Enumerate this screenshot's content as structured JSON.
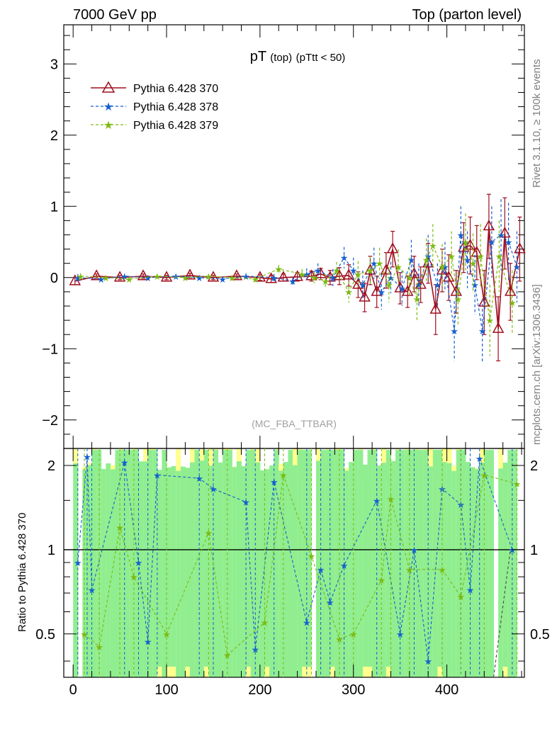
{
  "header": {
    "left": "7000 GeV pp",
    "right": "Top (parton level)"
  },
  "side_labels": {
    "rivet": "Rivet 3.1.10, ≥ 100k events",
    "mcplots": "mcplots.cern.ch [arXiv:1306.3436]"
  },
  "watermark": "(MC_FBA_TTBAR)",
  "plot_title": {
    "main": "pT",
    "sub1": "(top)",
    "sub2": "(pTtt < 50)"
  },
  "colors": {
    "s370": "#a00e1e",
    "s378": "#1560d0",
    "s379": "#7cba10",
    "band_yellow": "#ffff90",
    "band_green": "#90ee90",
    "diag": "#555555"
  },
  "chart_data": [
    {
      "type": "line",
      "panel": "main",
      "title": "pT (top) (pTtt < 50)",
      "xlabel": "",
      "ylabel": "",
      "xlim": [
        -10,
        483
      ],
      "ylim": [
        -2.4,
        3.55
      ],
      "x_ticks": [
        0,
        100,
        200,
        300,
        400
      ],
      "y_ticks": [
        -2,
        -1,
        0,
        1,
        2,
        3
      ],
      "y_tick_labels": [
        "−2",
        "−1",
        "0",
        "1",
        "2",
        "3"
      ],
      "legend": "top-left",
      "series": [
        {
          "name": "Pythia 6.428 370",
          "marker": "triangle",
          "x": [
            2,
            25,
            50,
            75,
            100,
            125,
            150,
            175,
            200,
            212,
            225,
            240,
            255,
            265,
            275,
            285,
            295,
            305,
            312,
            318,
            325,
            335,
            342,
            350,
            358,
            365,
            372,
            380,
            388,
            395,
            402,
            410,
            418,
            425,
            432,
            440,
            445,
            455,
            462,
            468,
            478
          ],
          "y": [
            -0.05,
            0.02,
            0.0,
            0.02,
            0.0,
            0.03,
            0.0,
            0.02,
            0.0,
            -0.02,
            0.0,
            0.01,
            0.02,
            0.05,
            0.0,
            0.02,
            0.03,
            -0.1,
            -0.28,
            0.1,
            -0.2,
            0.1,
            0.4,
            -0.15,
            -0.2,
            0.05,
            -0.1,
            0.2,
            -0.45,
            0.1,
            0.0,
            -0.2,
            0.42,
            0.45,
            0.35,
            -0.35,
            0.72,
            -0.72,
            0.62,
            -0.2,
            0.4
          ],
          "err": [
            0.05,
            0.03,
            0.03,
            0.03,
            0.03,
            0.03,
            0.03,
            0.03,
            0.04,
            0.05,
            0.05,
            0.06,
            0.07,
            0.08,
            0.1,
            0.12,
            0.15,
            0.18,
            0.2,
            0.2,
            0.22,
            0.25,
            0.25,
            0.22,
            0.22,
            0.25,
            0.25,
            0.28,
            0.35,
            0.3,
            0.32,
            0.3,
            0.35,
            0.4,
            0.38,
            0.45,
            0.45,
            0.45,
            0.5,
            0.4,
            0.45
          ]
        },
        {
          "name": "Pythia 6.428 378",
          "marker": "star",
          "x": [
            5,
            30,
            55,
            80,
            110,
            135,
            160,
            185,
            215,
            235,
            250,
            262,
            278,
            290,
            300,
            310,
            322,
            330,
            340,
            352,
            362,
            370,
            380,
            390,
            398,
            408,
            415,
            422,
            430,
            438,
            448,
            458,
            466,
            475
          ],
          "y": [
            0.0,
            -0.02,
            0.02,
            0.0,
            0.02,
            0.0,
            -0.02,
            0.02,
            0.0,
            -0.05,
            0.05,
            0.1,
            0.0,
            0.28,
            0.1,
            -0.1,
            0.2,
            -0.2,
            0.0,
            -0.15,
            0.25,
            -0.1,
            0.3,
            -0.1,
            0.15,
            -0.75,
            0.6,
            0.25,
            -0.1,
            -0.75,
            0.5,
            0.6,
            0.5,
            0.15
          ],
          "err": [
            0.05,
            0.03,
            0.03,
            0.03,
            0.03,
            0.03,
            0.03,
            0.04,
            0.05,
            0.06,
            0.08,
            0.1,
            0.12,
            0.15,
            0.18,
            0.2,
            0.22,
            0.25,
            0.22,
            0.25,
            0.28,
            0.3,
            0.3,
            0.3,
            0.35,
            0.42,
            0.4,
            0.4,
            0.42,
            0.45,
            0.5,
            0.5,
            0.55,
            0.5
          ]
        },
        {
          "name": "Pythia 6.428 379",
          "marker": "star",
          "x": [
            8,
            35,
            60,
            90,
            120,
            145,
            170,
            195,
            220,
            245,
            258,
            270,
            282,
            295,
            305,
            318,
            328,
            338,
            348,
            360,
            368,
            378,
            385,
            395,
            405,
            412,
            420,
            428,
            436,
            446,
            456,
            470
          ],
          "y": [
            0.02,
            0.0,
            -0.02,
            0.02,
            0.0,
            0.02,
            0.0,
            -0.02,
            0.12,
            0.05,
            0.0,
            -0.05,
            0.1,
            -0.2,
            0.05,
            0.1,
            0.2,
            -0.1,
            0.15,
            0.0,
            -0.3,
            0.25,
            0.45,
            0.15,
            0.3,
            -0.3,
            0.5,
            0.2,
            0.3,
            -0.6,
            0.3,
            -0.35
          ],
          "err": [
            0.04,
            0.03,
            0.03,
            0.03,
            0.03,
            0.03,
            0.03,
            0.04,
            0.06,
            0.07,
            0.08,
            0.1,
            0.12,
            0.15,
            0.18,
            0.2,
            0.22,
            0.25,
            0.25,
            0.28,
            0.3,
            0.3,
            0.3,
            0.32,
            0.35,
            0.38,
            0.4,
            0.42,
            0.45,
            0.5,
            0.5,
            0.45
          ]
        }
      ]
    },
    {
      "type": "line",
      "panel": "ratio",
      "title": "",
      "xlabel": "",
      "ylabel": "Ratio to Pythia 6.428 370",
      "xlim": [
        -10,
        483
      ],
      "ylim": [
        0.35,
        2.3
      ],
      "x_ticks": [
        0,
        100,
        200,
        300,
        400
      ],
      "x_tick_labels": [
        "0",
        "100",
        "200",
        "300",
        "400"
      ],
      "y_ticks": [
        0.5,
        1,
        2
      ],
      "y_tick_labels": [
        "0.5",
        "1",
        "2"
      ],
      "reference_line": 1,
      "series": [
        {
          "name": "Pythia 6.428 378",
          "x": [
            5,
            15,
            20,
            55,
            70,
            80,
            90,
            135,
            150,
            185,
            195,
            215,
            250,
            265,
            275,
            290,
            325,
            350,
            365,
            380,
            395,
            415,
            425,
            435,
            470
          ],
          "y": [
            0.9,
            2.15,
            0.72,
            2.05,
            0.9,
            0.47,
            1.85,
            1.8,
            1.65,
            1.48,
            0.44,
            1.75,
            0.55,
            0.85,
            0.65,
            0.88,
            1.5,
            0.5,
            1.0,
            0.4,
            1.65,
            1.45,
            0.72,
            2.12,
            1.0
          ]
        },
        {
          "name": "Pythia 6.428 379",
          "x": [
            12,
            28,
            50,
            65,
            100,
            145,
            165,
            205,
            225,
            255,
            285,
            300,
            330,
            340,
            360,
            395,
            415,
            440,
            475
          ],
          "y": [
            0.5,
            0.45,
            1.2,
            0.8,
            0.5,
            1.15,
            0.42,
            0.55,
            1.85,
            0.95,
            0.48,
            0.5,
            0.78,
            1.52,
            0.85,
            0.85,
            0.68,
            1.85,
            1.72
          ]
        }
      ]
    }
  ]
}
